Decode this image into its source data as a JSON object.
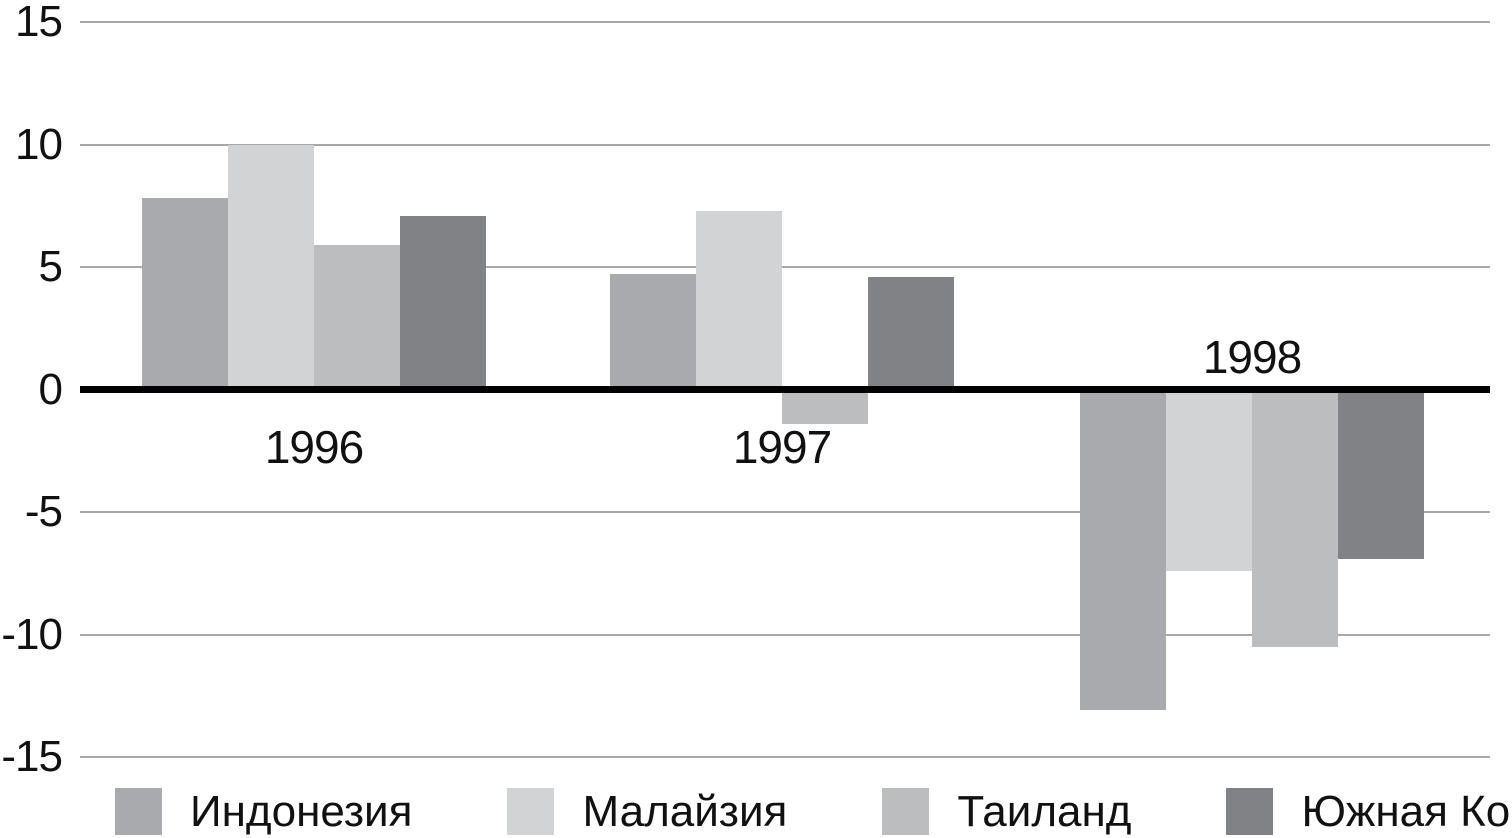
{
  "chart_data": {
    "type": "bar",
    "title": "",
    "xlabel": "",
    "ylabel": "",
    "categories": [
      "1996",
      "1997",
      "1998"
    ],
    "series": [
      {
        "key": "indonesia",
        "name": "Индонезия",
        "color": "#a8aaad",
        "values": [
          7.8,
          4.7,
          -13.1
        ]
      },
      {
        "key": "malaysia",
        "name": "Малайзия",
        "color": "#d2d3d5",
        "values": [
          10.0,
          7.3,
          -7.4
        ]
      },
      {
        "key": "thailand",
        "name": "Таиланд",
        "color": "#bcbdbf",
        "values": [
          5.9,
          -1.4,
          -10.5
        ]
      },
      {
        "key": "south-korea",
        "name": "Южная Корея",
        "color": "#808285",
        "values": [
          7.1,
          4.6,
          -6.9
        ]
      }
    ],
    "ylim": [
      -15,
      15
    ],
    "yticks": [
      15,
      10,
      5,
      0,
      -5,
      -10,
      -15
    ],
    "ytick_labels": [
      "15",
      "10",
      "5",
      "0",
      "-5",
      "-10",
      "-15"
    ],
    "grid": true,
    "legend_position": "bottom",
    "colors": {
      "gridline": "#a7a7a7",
      "zero_line": "#000000",
      "text": "#111111",
      "background": "#ffffff"
    }
  }
}
